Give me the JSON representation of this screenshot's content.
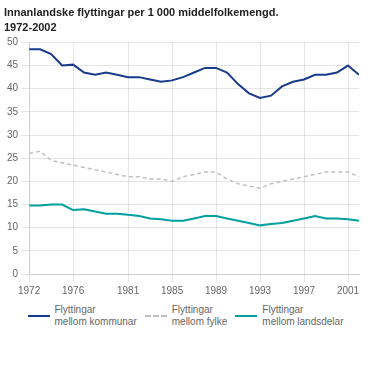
{
  "chart_data": {
    "type": "line",
    "title": "Innanlandske flyttingar per 1 000 middelfolkemengd.",
    "subtitle": "1972-2002",
    "x": [
      1972,
      1973,
      1974,
      1975,
      1976,
      1977,
      1978,
      1979,
      1980,
      1981,
      1982,
      1983,
      1984,
      1985,
      1986,
      1987,
      1988,
      1989,
      1990,
      1991,
      1992,
      1993,
      1994,
      1995,
      1996,
      1997,
      1998,
      1999,
      2000,
      2001,
      2002
    ],
    "series": [
      {
        "name": "Flyttingar\nmellom kommunar",
        "color": "#1a3a8c",
        "line_style": "solid",
        "values": [
          48.5,
          48.5,
          47.5,
          45.0,
          45.2,
          43.5,
          43.0,
          43.5,
          43.0,
          42.5,
          42.5,
          42.0,
          41.5,
          41.8,
          42.5,
          43.5,
          44.5,
          44.5,
          43.5,
          41.0,
          39.0,
          38.0,
          38.5,
          40.5,
          41.5,
          42.0,
          43.0,
          43.0,
          43.5,
          45.0,
          43.0
        ]
      },
      {
        "name": "Flyttingar\nmellom fylke",
        "color": "#c0c0c0",
        "line_style": "dashed",
        "values": [
          26.0,
          26.5,
          24.5,
          24.0,
          23.5,
          23.0,
          22.5,
          22.0,
          21.5,
          21.0,
          21.0,
          20.5,
          20.5,
          20.0,
          21.0,
          21.5,
          22.0,
          22.0,
          20.5,
          19.5,
          19.0,
          18.5,
          19.5,
          20.0,
          20.5,
          21.0,
          21.5,
          22.0,
          22.0,
          22.0,
          21.0
        ]
      },
      {
        "name": "Flyttingar\nmellom landsdelar",
        "color": "#00a0a0",
        "line_style": "solid",
        "values": [
          14.8,
          14.8,
          15.0,
          15.0,
          13.8,
          14.0,
          13.5,
          13.0,
          13.0,
          12.8,
          12.5,
          12.0,
          11.8,
          11.5,
          11.5,
          12.0,
          12.5,
          12.5,
          12.0,
          11.5,
          11.0,
          10.5,
          10.8,
          11.0,
          11.5,
          12.0,
          12.5,
          12.0,
          12.0,
          11.8,
          11.5
        ]
      }
    ],
    "xlim": [
      1972,
      2002
    ],
    "xticks": [
      1972,
      1976,
      1981,
      1985,
      1989,
      1993,
      1997,
      2001
    ],
    "ylim": [
      0,
      50
    ],
    "yticks": [
      0,
      5,
      10,
      15,
      20,
      25,
      30,
      35,
      40,
      45,
      50
    ],
    "grid": true,
    "legend": "bottom"
  }
}
